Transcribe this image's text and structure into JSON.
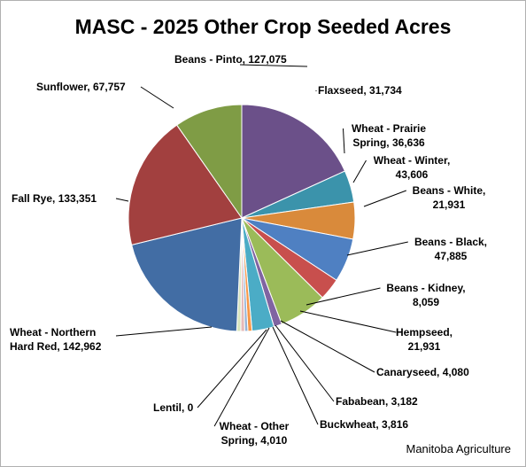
{
  "chart_data": {
    "type": "pie",
    "title": "MASC - 2025 Other Crop Seeded Acres",
    "slices": [
      {
        "label": "Beans - Pinto",
        "value_text": "127,075",
        "value": 127075,
        "color": "#6B5089"
      },
      {
        "label": "Flaxseed",
        "value_text": "31,734",
        "value": 31734,
        "color": "#3B93AB"
      },
      {
        "label": "Wheat - Prairie Spring",
        "value_text": "36,636",
        "value": 36636,
        "color": "#D98A3B"
      },
      {
        "label": "Wheat - Winter",
        "value_text": "43,606",
        "value": 43606,
        "color": "#4F80C2"
      },
      {
        "label": "Beans - White",
        "value_text": "21,931",
        "value": 21931,
        "color": "#C84F4D"
      },
      {
        "label": "Beans - Black",
        "value_text": "47,885",
        "value": 47885,
        "color": "#9BBB59"
      },
      {
        "label": "Beans - Kidney",
        "value_text": "8,059",
        "value": 8059,
        "color": "#8064A2"
      },
      {
        "label": "Hempseed",
        "value_text": "21,931",
        "value": 21931,
        "color": "#4BACC6"
      },
      {
        "label": "Canaryseed",
        "value_text": "4,080",
        "value": 4080,
        "color": "#F79646"
      },
      {
        "label": "Fababean",
        "value_text": "3,182",
        "value": 3182,
        "color": "#95B3D7"
      },
      {
        "label": "Buckwheat",
        "value_text": "3,816",
        "value": 3816,
        "color": "#E6B9B8"
      },
      {
        "label": "Wheat - Other Spring",
        "value_text": "4,010",
        "value": 4010,
        "color": "#D7E4BD"
      },
      {
        "label": "Lentil",
        "value_text": "0",
        "value": 0,
        "color": "#CCC1DA"
      },
      {
        "label": "Wheat - Northern Hard Red",
        "value_text": "142,962",
        "value": 142962,
        "color": "#426DA4"
      },
      {
        "label": "Fall Rye",
        "value_text": "133,351",
        "value": 133351,
        "color": "#A2403F"
      },
      {
        "label": "Sunflower",
        "value_text": "67,757",
        "value": 67757,
        "color": "#7F9C45"
      }
    ],
    "legend": "none",
    "start_angle_deg": 0,
    "direction": "clockwise"
  },
  "source_note": "Manitoba Agriculture"
}
